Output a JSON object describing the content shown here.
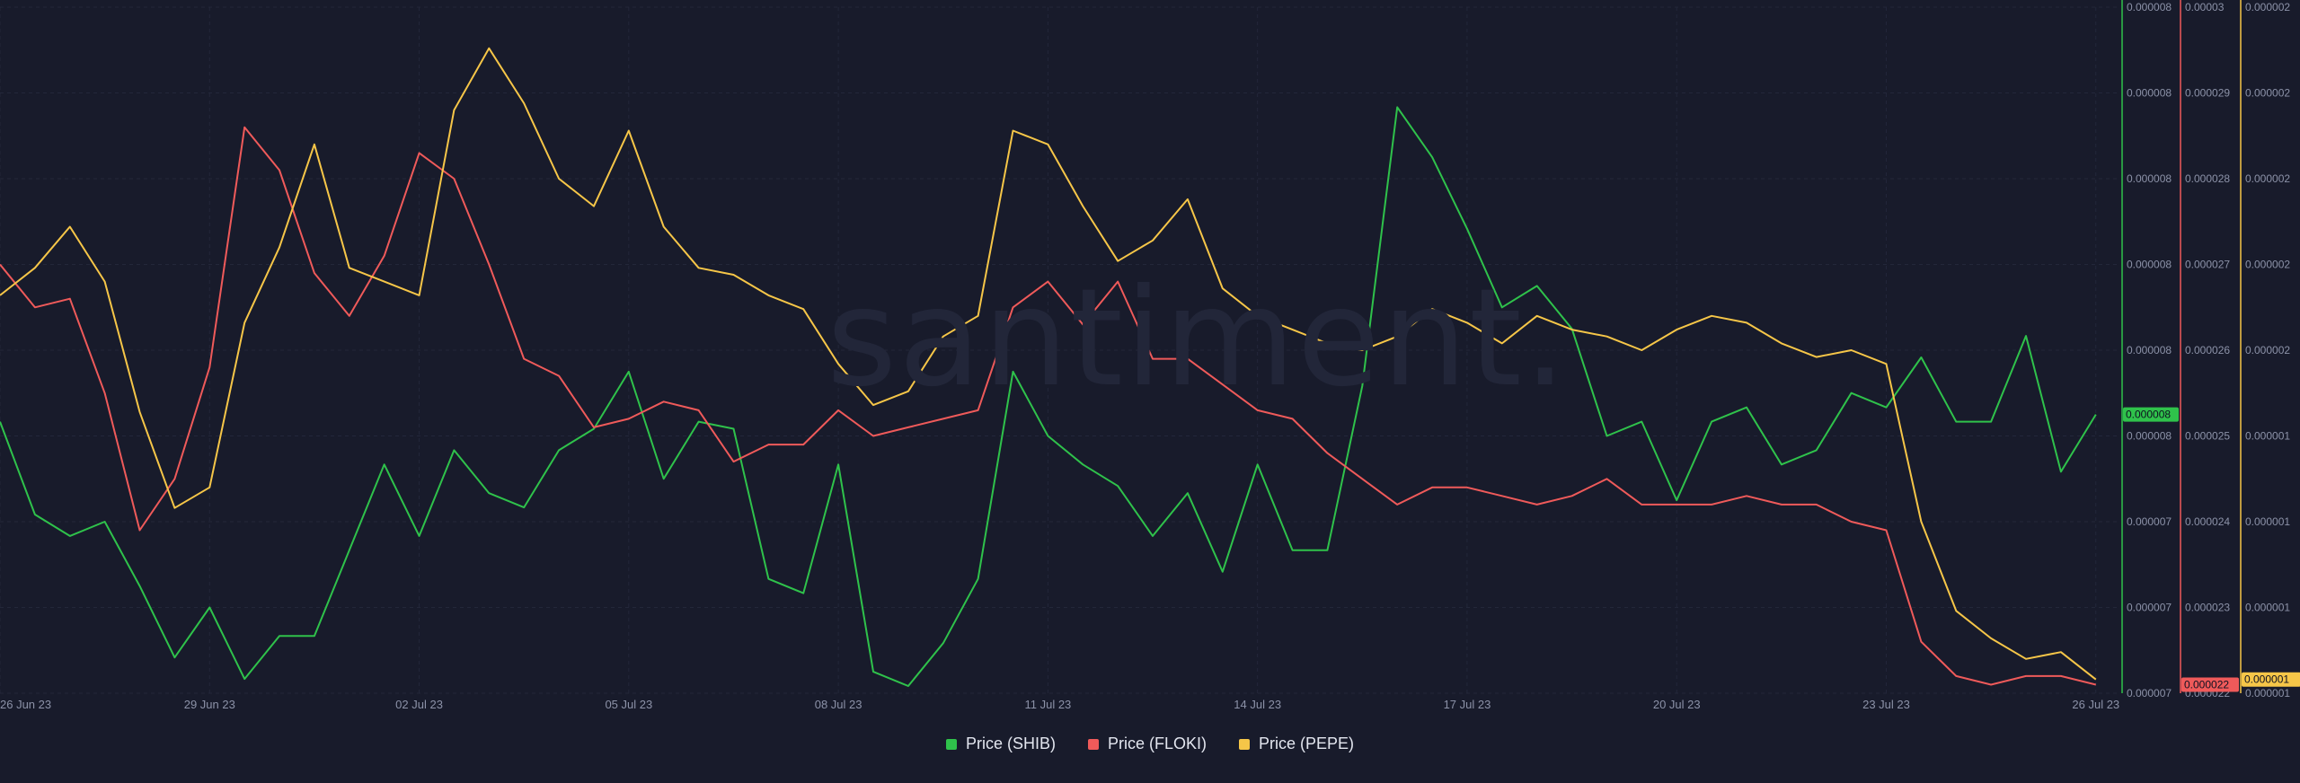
{
  "watermark": "santiment.",
  "legend": [
    {
      "label": "Price (SHIB)",
      "color": "#2fc24b"
    },
    {
      "label": "Price (FLOKI)",
      "color": "#ef5a5a"
    },
    {
      "label": "Price (PEPE)",
      "color": "#f6c648"
    }
  ],
  "chart_data": {
    "type": "line",
    "grid": true,
    "legend_position": "bottom-center",
    "x_ticks": [
      "26 Jun 23",
      "29 Jun 23",
      "02 Jul 23",
      "05 Jul 23",
      "08 Jul 23",
      "11 Jul 23",
      "14 Jul 23",
      "17 Jul 23",
      "20 Jul 23",
      "23 Jul 23",
      "26 Jul 23"
    ],
    "x": [
      0,
      0.5,
      1,
      1.5,
      2,
      2.5,
      3,
      3.5,
      4,
      4.5,
      5,
      5.5,
      6,
      6.5,
      7,
      7.5,
      8,
      8.5,
      9,
      9.5,
      10,
      10.5,
      11,
      11.5,
      12,
      12.5,
      13,
      13.5,
      14,
      14.5,
      15,
      15.5,
      16,
      16.5,
      17,
      17.5,
      18,
      18.5,
      19,
      19.5,
      20,
      20.5,
      21,
      21.5,
      22,
      22.5,
      23,
      23.5,
      24,
      24.5,
      25,
      25.5,
      26,
      26.5,
      27,
      27.5,
      28,
      28.5,
      29,
      29.5,
      30
    ],
    "x_domain": [
      0,
      30.35
    ],
    "axes": [
      {
        "name": "SHIB",
        "color": "#2fc24b",
        "ticks": [
          "0.000008",
          "0.000008",
          "0.000008",
          "0.000008",
          "0.000008",
          "0.000008",
          "0.000007",
          "0.000007",
          "0.000007"
        ],
        "current_label": "0.000008",
        "range": [
          7e-06,
          7.96e-06
        ]
      },
      {
        "name": "FLOKI",
        "color": "#ef5a5a",
        "ticks": [
          "0.00003",
          "0.000029",
          "0.000028",
          "0.000027",
          "0.000026",
          "0.000025",
          "0.000024",
          "0.000023",
          "0.000022"
        ],
        "current_label": "0.000022",
        "range": [
          2.2e-05,
          3e-05
        ]
      },
      {
        "name": "PEPE",
        "color": "#f6c648",
        "ticks": [
          "0.000002",
          "0.000002",
          "0.000002",
          "0.000002",
          "0.000002",
          "0.000001",
          "0.000001",
          "0.000001",
          "0.000001"
        ],
        "current_label": "0.000001",
        "range": [
          1e-06,
          2e-06
        ]
      }
    ],
    "series": [
      {
        "name": "Price (SHIB)",
        "axis": 0,
        "color": "#2fc24b",
        "values": [
          7.38e-06,
          7.25e-06,
          7.22e-06,
          7.24e-06,
          7.15e-06,
          7.05e-06,
          7.12e-06,
          7.02e-06,
          7.08e-06,
          7.08e-06,
          7.2e-06,
          7.32e-06,
          7.22e-06,
          7.34e-06,
          7.28e-06,
          7.26e-06,
          7.34e-06,
          7.37e-06,
          7.45e-06,
          7.3e-06,
          7.38e-06,
          7.37e-06,
          7.16e-06,
          7.14e-06,
          7.32e-06,
          7.03e-06,
          7.01e-06,
          7.07e-06,
          7.16e-06,
          7.45e-06,
          7.36e-06,
          7.32e-06,
          7.29e-06,
          7.22e-06,
          7.28e-06,
          7.17e-06,
          7.32e-06,
          7.2e-06,
          7.2e-06,
          7.43e-06,
          7.82e-06,
          7.75e-06,
          7.65e-06,
          7.54e-06,
          7.57e-06,
          7.51e-06,
          7.36e-06,
          7.38e-06,
          7.27e-06,
          7.38e-06,
          7.4e-06,
          7.32e-06,
          7.34e-06,
          7.42e-06,
          7.4e-06,
          7.47e-06,
          7.38e-06,
          7.38e-06,
          7.5e-06,
          7.31e-06,
          7.39e-06
        ]
      },
      {
        "name": "Price (FLOKI)",
        "axis": 1,
        "color": "#ef5a5a",
        "values": [
          2.7e-05,
          2.65e-05,
          2.66e-05,
          2.55e-05,
          2.39e-05,
          2.45e-05,
          2.58e-05,
          2.86e-05,
          2.81e-05,
          2.69e-05,
          2.64e-05,
          2.71e-05,
          2.83e-05,
          2.8e-05,
          2.7e-05,
          2.59e-05,
          2.57e-05,
          2.51e-05,
          2.52e-05,
          2.54e-05,
          2.53e-05,
          2.47e-05,
          2.49e-05,
          2.49e-05,
          2.53e-05,
          2.5e-05,
          2.51e-05,
          2.52e-05,
          2.53e-05,
          2.65e-05,
          2.68e-05,
          2.63e-05,
          2.68e-05,
          2.59e-05,
          2.59e-05,
          2.56e-05,
          2.53e-05,
          2.52e-05,
          2.48e-05,
          2.45e-05,
          2.42e-05,
          2.44e-05,
          2.44e-05,
          2.43e-05,
          2.42e-05,
          2.43e-05,
          2.45e-05,
          2.42e-05,
          2.42e-05,
          2.42e-05,
          2.43e-05,
          2.42e-05,
          2.42e-05,
          2.4e-05,
          2.39e-05,
          2.26e-05,
          2.22e-05,
          2.21e-05,
          2.22e-05,
          2.22e-05,
          2.21e-05
        ]
      },
      {
        "name": "Price (PEPE)",
        "axis": 2,
        "color": "#f6c648",
        "values": [
          1.58e-06,
          1.62e-06,
          1.68e-06,
          1.6e-06,
          1.41e-06,
          1.27e-06,
          1.3e-06,
          1.54e-06,
          1.65e-06,
          1.8e-06,
          1.62e-06,
          1.6e-06,
          1.58e-06,
          1.85e-06,
          1.94e-06,
          1.86e-06,
          1.75e-06,
          1.71e-06,
          1.82e-06,
          1.68e-06,
          1.62e-06,
          1.61e-06,
          1.58e-06,
          1.56e-06,
          1.48e-06,
          1.42e-06,
          1.44e-06,
          1.52e-06,
          1.55e-06,
          1.82e-06,
          1.8e-06,
          1.71e-06,
          1.63e-06,
          1.66e-06,
          1.72e-06,
          1.59e-06,
          1.55e-06,
          1.53e-06,
          1.51e-06,
          1.5e-06,
          1.52e-06,
          1.56e-06,
          1.54e-06,
          1.51e-06,
          1.55e-06,
          1.53e-06,
          1.52e-06,
          1.5e-06,
          1.53e-06,
          1.55e-06,
          1.54e-06,
          1.51e-06,
          1.49e-06,
          1.5e-06,
          1.48e-06,
          1.25e-06,
          1.12e-06,
          1.08e-06,
          1.05e-06,
          1.06e-06,
          1.02e-06
        ]
      }
    ]
  }
}
